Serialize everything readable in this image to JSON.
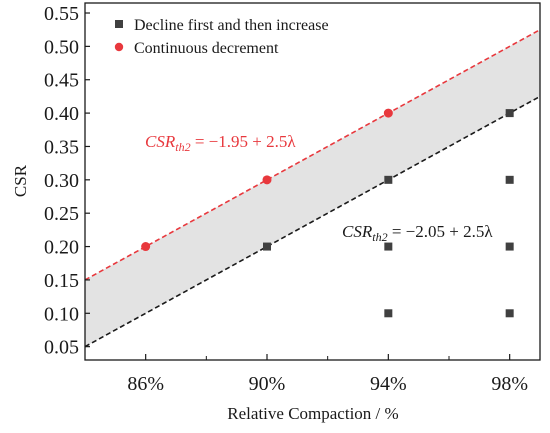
{
  "chart_data": {
    "type": "scatter",
    "xlabel": "Relative Compaction / %",
    "ylabel": "CSR",
    "x_categories": [
      "86%",
      "90%",
      "94%",
      "98%"
    ],
    "x_values": [
      86,
      90,
      94,
      98
    ],
    "xlim": [
      84,
      99
    ],
    "ylim": [
      0.03,
      0.565
    ],
    "y_ticks": [
      0.05,
      0.1,
      0.15,
      0.2,
      0.25,
      0.3,
      0.35,
      0.4,
      0.45,
      0.5,
      0.55
    ],
    "y_tick_labels": [
      "0.05",
      "0.10",
      "0.15",
      "0.20",
      "0.25",
      "0.30",
      "0.35",
      "0.40",
      "0.45",
      "0.50",
      "0.55"
    ],
    "legend_position": "top-left",
    "series": [
      {
        "name": "Decline first and then increase",
        "marker": "square",
        "color": "#404040",
        "points": [
          {
            "x": 90,
            "y": 0.2
          },
          {
            "x": 94,
            "y": 0.3
          },
          {
            "x": 94,
            "y": 0.2
          },
          {
            "x": 94,
            "y": 0.1
          },
          {
            "x": 98,
            "y": 0.4
          },
          {
            "x": 98,
            "y": 0.3
          },
          {
            "x": 98,
            "y": 0.2
          },
          {
            "x": 98,
            "y": 0.1
          }
        ]
      },
      {
        "name": "Continuous decrement",
        "marker": "circle",
        "color": "#e8383d",
        "points": [
          {
            "x": 86,
            "y": 0.2
          },
          {
            "x": 90,
            "y": 0.3
          },
          {
            "x": 94,
            "y": 0.4
          }
        ]
      }
    ],
    "threshold_lines": [
      {
        "intercept": -1.95,
        "slope": 2.5,
        "color": "#e8383d",
        "style": "dashed",
        "equation": {
          "lhs": "CSR",
          "sub": "th2",
          "rhs": " = −1.95 + 2.5λ"
        }
      },
      {
        "intercept": -2.05,
        "slope": 2.5,
        "color": "#1a1a1a",
        "style": "dashed",
        "equation": {
          "lhs": "CSR",
          "sub": "th2",
          "rhs": " = −2.05 + 2.5λ"
        }
      }
    ],
    "band_fill": "#e3e3e3"
  }
}
